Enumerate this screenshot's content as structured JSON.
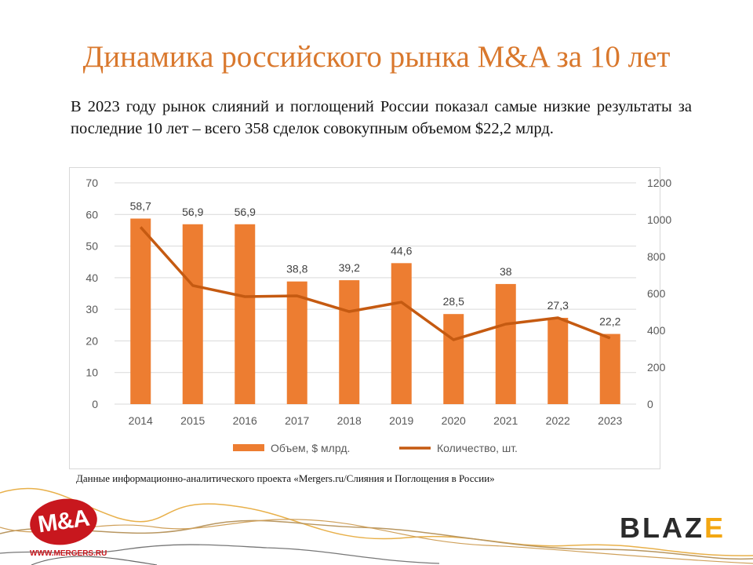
{
  "title": "Динамика российского рынка M&A за 10 лет",
  "subtitle": "В 2023 году рынок слияний и поглощений России показал самые низкие результаты за последние 10 лет – всего 358 сделок совокупным объемом $22,2 млрд.",
  "source": "Данные информационно-аналитического проекта «Mergers.ru/Слияния и Поглощения в России»",
  "logos": {
    "ma": "M&A",
    "ma_url": "WWW.MERGERS.RU",
    "blaze_main": "BLAZ",
    "blaze_last": "E"
  },
  "colors": {
    "bar": "#ed7d31",
    "line": "#c55a11",
    "title": "#d9782d"
  },
  "chart_data": {
    "type": "bar+line",
    "categories": [
      "2014",
      "2015",
      "2016",
      "2017",
      "2018",
      "2019",
      "2020",
      "2021",
      "2022",
      "2023"
    ],
    "series": [
      {
        "name": "Объем, $ млрд.",
        "type": "bar",
        "axis": "left",
        "values": [
          58.7,
          56.9,
          56.9,
          38.8,
          39.2,
          44.6,
          28.5,
          38,
          27.3,
          22.2
        ],
        "labels": [
          "58,7",
          "56,9",
          "56,9",
          "38,8",
          "39,2",
          "44,6",
          "28,5",
          "38",
          "27,3",
          "22,2"
        ]
      },
      {
        "name": "Количество, шт.",
        "type": "line",
        "axis": "right",
        "values": [
          960,
          643,
          583,
          587,
          502,
          553,
          349,
          434,
          468,
          358
        ]
      }
    ],
    "y_left": {
      "range": [
        0,
        70
      ],
      "ticks": [
        "0",
        "10",
        "20",
        "30",
        "40",
        "50",
        "60",
        "70"
      ]
    },
    "y_right": {
      "range": [
        0,
        1200
      ],
      "ticks": [
        "0",
        "200",
        "400",
        "600",
        "800",
        "1000",
        "1200"
      ]
    },
    "grid": true,
    "legend": "bottom"
  }
}
